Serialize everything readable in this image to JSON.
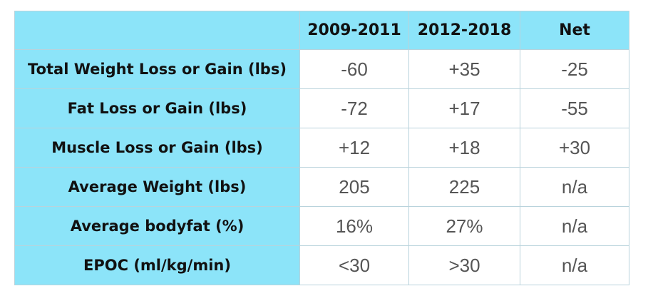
{
  "chart_data": {
    "type": "table",
    "columns": [
      "",
      "2009-2011",
      "2012-2018",
      "Net"
    ],
    "rows": [
      {
        "label": "Total Weight Loss or Gain (lbs)",
        "values": [
          "-60",
          "+35",
          "-25"
        ]
      },
      {
        "label": "Fat Loss or Gain (lbs)",
        "values": [
          "-72",
          "+17",
          "-55"
        ]
      },
      {
        "label": "Muscle Loss or Gain (lbs)",
        "values": [
          "+12",
          "+18",
          "+30"
        ]
      },
      {
        "label": "Average Weight (lbs)",
        "values": [
          "205",
          "225",
          "n/a"
        ]
      },
      {
        "label": "Average bodyfat (%)",
        "values": [
          "16%",
          "27%",
          "n/a"
        ]
      },
      {
        "label": "EPOC (ml/kg/min)",
        "values": [
          "<30",
          ">30",
          "n/a"
        ]
      }
    ]
  },
  "colors": {
    "header_fill": "#8ce4f9",
    "cell_fill": "#ffffff",
    "border": "#b9d3dc",
    "value_text": "#555555",
    "label_text": "#111111"
  }
}
